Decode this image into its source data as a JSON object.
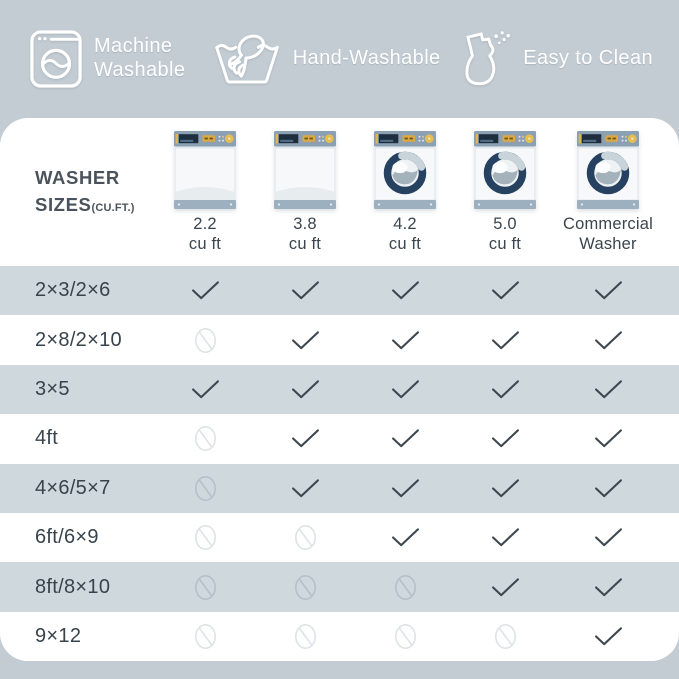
{
  "colors": {
    "page_bg": "#c3ccd3",
    "card_bg": "#ffffff",
    "stripe_bg": "#cfd8dc",
    "text_dark": "#3b454d",
    "check": "#3d474f",
    "no_on_white": "#dfe3e6",
    "no_on_gray": "#b6c0c7",
    "feature_fg": "#ffffff"
  },
  "features": [
    {
      "icon": "washing-machine-icon",
      "label": "Machine Washable"
    },
    {
      "icon": "hand-wash-icon",
      "label": "Hand-Washable"
    },
    {
      "icon": "spray-bottle-icon",
      "label": "Easy to Clean"
    }
  ],
  "table": {
    "title_line1": "WASHER",
    "title_line2": "SIZES",
    "title_suffix": "(CU.FT.)",
    "columns": [
      {
        "label_line1": "2.2",
        "label_line2": "cu ft",
        "washer_type": "top-load"
      },
      {
        "label_line1": "3.8",
        "label_line2": "cu ft",
        "washer_type": "top-load"
      },
      {
        "label_line1": "4.2",
        "label_line2": "cu ft",
        "washer_type": "front-load"
      },
      {
        "label_line1": "5.0",
        "label_line2": "cu ft",
        "washer_type": "front-load"
      },
      {
        "label_line1": "Commercial",
        "label_line2": "Washer",
        "washer_type": "front-load"
      }
    ],
    "rows": [
      {
        "size": "2×3/2×6",
        "values": [
          "yes",
          "yes",
          "yes",
          "yes",
          "yes"
        ]
      },
      {
        "size": "2×8/2×10",
        "values": [
          "no",
          "yes",
          "yes",
          "yes",
          "yes"
        ]
      },
      {
        "size": "3×5",
        "values": [
          "yes",
          "yes",
          "yes",
          "yes",
          "yes"
        ]
      },
      {
        "size": "4ft",
        "values": [
          "no",
          "yes",
          "yes",
          "yes",
          "yes"
        ]
      },
      {
        "size": "4×6/5×7",
        "values": [
          "no",
          "yes",
          "yes",
          "yes",
          "yes"
        ]
      },
      {
        "size": "6ft/6×9",
        "values": [
          "no",
          "no",
          "yes",
          "yes",
          "yes"
        ]
      },
      {
        "size": "8ft/8×10",
        "values": [
          "no",
          "no",
          "no",
          "yes",
          "yes"
        ]
      },
      {
        "size": "9×12",
        "values": [
          "no",
          "no",
          "no",
          "no",
          "yes"
        ]
      }
    ]
  },
  "chart_data": {
    "type": "table",
    "title": "WASHER SIZES (CU.FT.)",
    "columns": [
      "2.2 cu ft",
      "3.8 cu ft",
      "4.2 cu ft",
      "5.0 cu ft",
      "Commercial Washer"
    ],
    "row_labels": [
      "2×3/2×6",
      "2×8/2×10",
      "3×5",
      "4ft",
      "4×6/5×7",
      "6ft/6×9",
      "8ft/8×10",
      "9×12"
    ],
    "values": [
      [
        "yes",
        "yes",
        "yes",
        "yes",
        "yes"
      ],
      [
        "no",
        "yes",
        "yes",
        "yes",
        "yes"
      ],
      [
        "yes",
        "yes",
        "yes",
        "yes",
        "yes"
      ],
      [
        "no",
        "yes",
        "yes",
        "yes",
        "yes"
      ],
      [
        "no",
        "yes",
        "yes",
        "yes",
        "yes"
      ],
      [
        "no",
        "no",
        "yes",
        "yes",
        "yes"
      ],
      [
        "no",
        "no",
        "no",
        "yes",
        "yes"
      ],
      [
        "no",
        "no",
        "no",
        "no",
        "yes"
      ]
    ],
    "legend": {
      "yes": "checkmark (fits)",
      "no": "prohibition sign (does not fit)"
    }
  }
}
